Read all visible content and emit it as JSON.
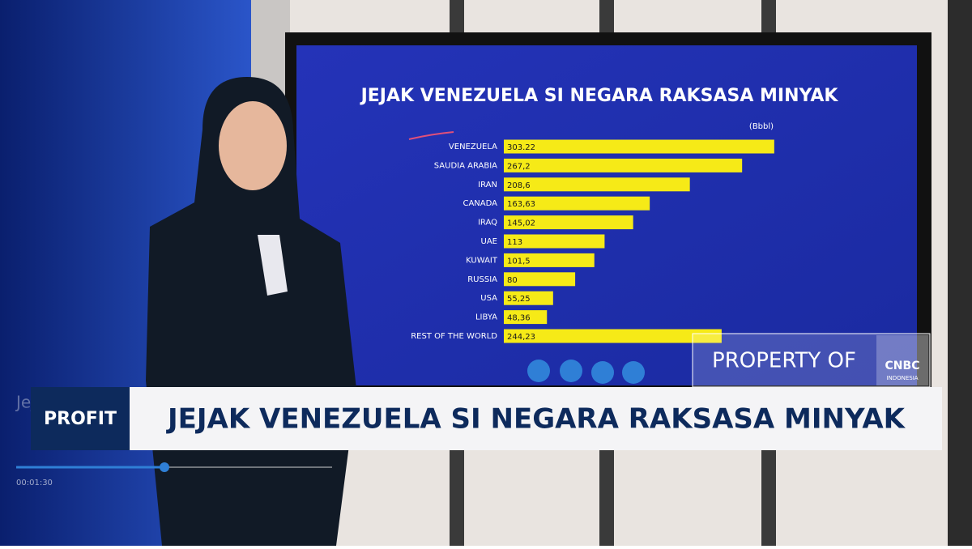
{
  "chart_data": {
    "type": "bar",
    "orientation": "horizontal",
    "title": "JEJAK VENEZUELA SI NEGARA RAKSASA MINYAK",
    "unit_label": "(Bbbl)",
    "categories": [
      "VENEZUELA",
      "SAUDIA ARABIA",
      "IRAN",
      "CANADA",
      "IRAQ",
      "UAE",
      "KUWAIT",
      "RUSSIA",
      "USA",
      "LIBYA",
      "REST OF THE WORLD"
    ],
    "values": [
      303.22,
      267.2,
      208.6,
      163.63,
      145.02,
      113,
      101.5,
      80,
      55.25,
      48.36,
      244.23
    ],
    "value_labels": [
      "303.22",
      "267,2",
      "208,6",
      "163,63",
      "145,02",
      "113",
      "101,5",
      "80",
      "55,25",
      "48,36",
      "244,23"
    ],
    "color": "#f6ea17"
  },
  "broadcast": {
    "program": "PROFIT",
    "headline": "JEJAK VENEZUELA SI NEGARA RAKSASA MINYAK",
    "watermark": "PROPERTY OF",
    "logo": "CNBC",
    "logo_sub": "INDONESIA",
    "player_title": "Jejak Vene",
    "time": "00:01:30"
  }
}
